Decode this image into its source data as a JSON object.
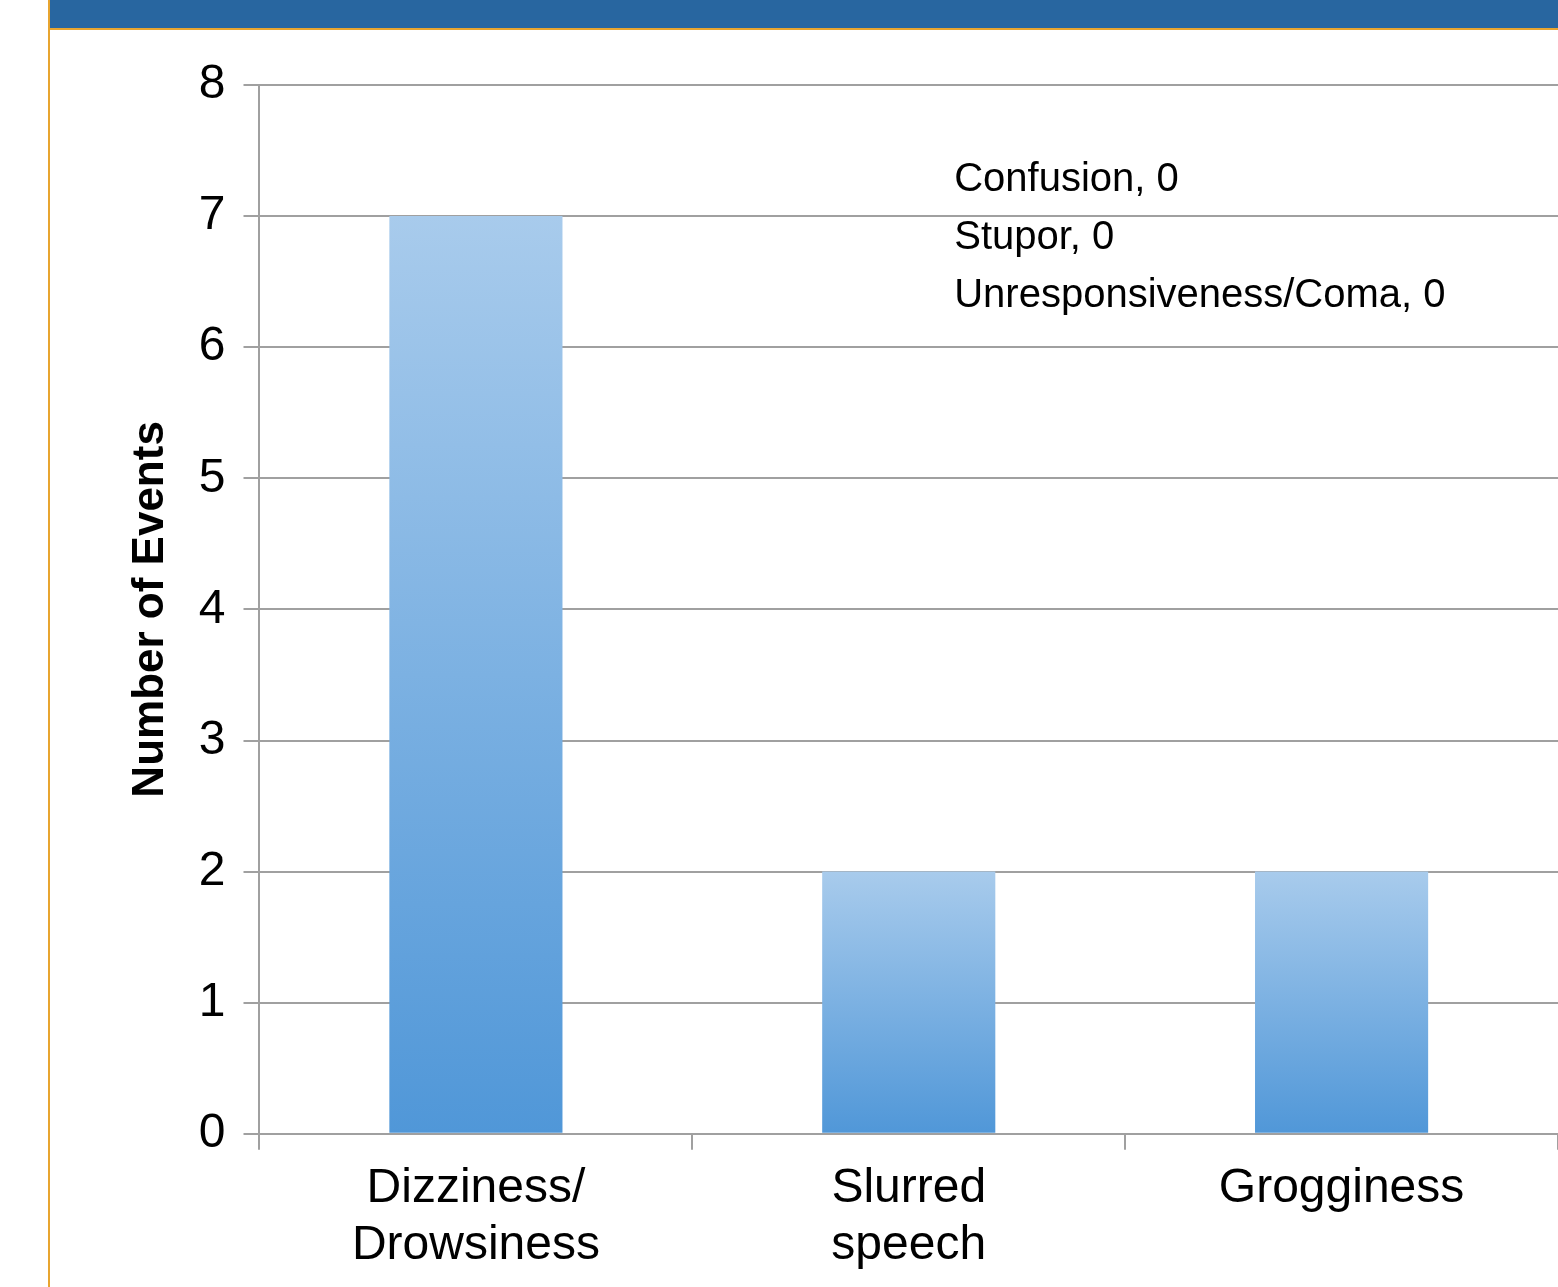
{
  "chart_data": {
    "type": "bar",
    "ylabel": "Number of Events",
    "categories": [
      "Dizziness/ Drowsiness",
      "Slurred speech",
      "Grogginess"
    ],
    "values": [
      7,
      2,
      2
    ],
    "color": "#5097d8",
    "ylim": [
      0,
      8
    ],
    "yticks": [
      0,
      1,
      2,
      3,
      4,
      5,
      6,
      7,
      8
    ],
    "grid": "y",
    "legend": false,
    "annotations": [
      "Confusion, 0",
      "Stupor, 0",
      "Unresponsiveness/Coma, 0"
    ]
  }
}
